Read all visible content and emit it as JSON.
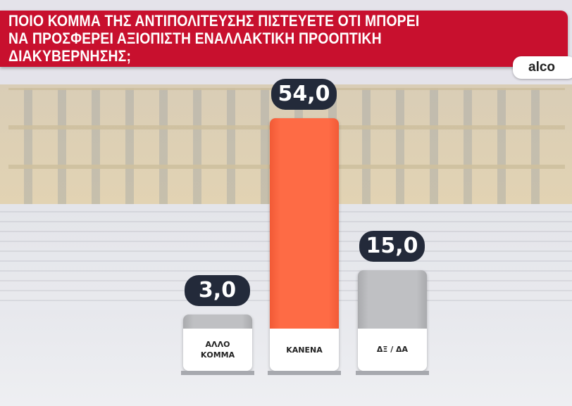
{
  "title": "ΠΟΙΟ ΚΟΜΜΑ ΤΗΣ ΑΝΤΙΠΟΛΙΤΕΥΣΗΣ ΠΙΣΤΕΥΕΤΕ ΟΤΙ ΜΠΟΡΕΙ\nΝΑ ΠΡΟΣΦΕΡΕΙ ΑΞΙΟΠΙΣΤΗ ΕΝΑΛΛΑΚΤΙΚΗ ΠΡΟΟΠΤΙΚΗ\nΔΙΑΚΥΒΕΡΝΗΣΗΣ;",
  "source": "alco",
  "colors": {
    "banner": "#c8102e",
    "highlight": "#fe6b45",
    "neutral": "#b9babd",
    "pill": "#232a3a"
  },
  "chart_data": {
    "type": "bar",
    "title": "ΠΟΙΟ ΚΟΜΜΑ ΤΗΣ ΑΝΤΙΠΟΛΙΤΕΥΣΗΣ ΠΙΣΤΕΥΕΤΕ ΟΤΙ ΜΠΟΡΕΙ ΝΑ ΠΡΟΣΦΕΡΕΙ ΑΞΙΟΠΙΣΤΗ ΕΝΑΛΛΑΚΤΙΚΗ ΠΡΟΟΠΤΙΚΗ ΔΙΑΚΥΒΕΡΝΗΣΗΣ;",
    "categories": [
      "ΑΛΛΟ\nΚΟΜΜΑ",
      "ΚΑΝΕΝΑ",
      "ΔΞ / ΔΑ"
    ],
    "values": [
      3.0,
      54.0,
      15.0
    ],
    "value_labels": [
      "3,0",
      "54,0",
      "15,0"
    ],
    "bar_colors": [
      "#b9babd",
      "#fe6b45",
      "#b9babd"
    ],
    "ylim": [
      0,
      54
    ],
    "grid": false
  }
}
